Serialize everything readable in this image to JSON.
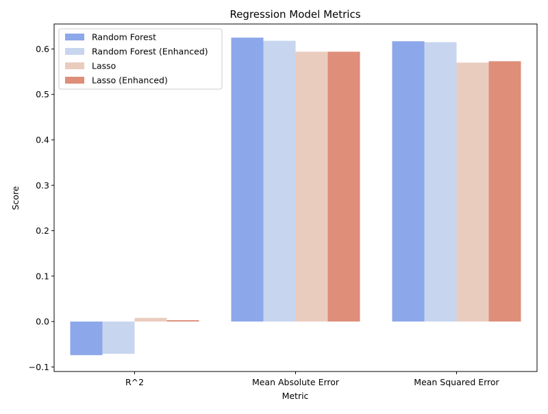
{
  "chart_data": {
    "type": "bar",
    "title": "Regression Model Metrics",
    "xlabel": "Metric",
    "ylabel": "Score",
    "categories": [
      "R^2",
      "Mean Absolute Error",
      "Mean Squared Error"
    ],
    "ylim": [
      -0.11,
      0.655
    ],
    "yticks": [
      "−0.1",
      "0.0",
      "0.1",
      "0.2",
      "0.3",
      "0.4",
      "0.5",
      "0.6"
    ],
    "grid": false,
    "legend_position": "top-left",
    "series": [
      {
        "name": "Random Forest",
        "color": "#8ca7ea",
        "values": [
          -0.074,
          0.625,
          0.617
        ]
      },
      {
        "name": "Random Forest (Enhanced)",
        "color": "#c7d5ef",
        "values": [
          -0.071,
          0.618,
          0.615
        ]
      },
      {
        "name": "Lasso",
        "color": "#eaccbf",
        "values": [
          0.008,
          0.594,
          0.57
        ]
      },
      {
        "name": "Lasso (Enhanced)",
        "color": "#de8e79",
        "values": [
          0.003,
          0.594,
          0.573
        ]
      }
    ]
  }
}
